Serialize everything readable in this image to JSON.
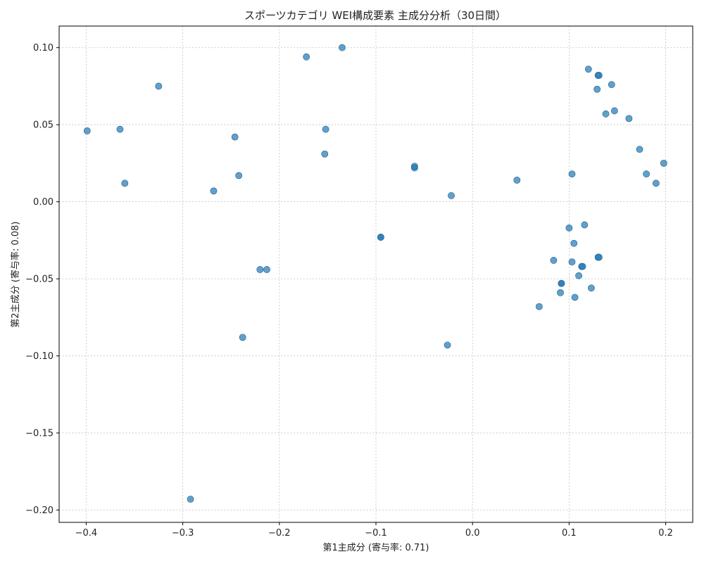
{
  "chart_data": {
    "type": "scatter",
    "title": "スポーツカテゴリ WEI構成要素 主成分分析（30日間）",
    "xlabel": "第1主成分 (寄与率: 0.71)",
    "ylabel": "第2主成分 (寄与率: 0.08)",
    "xlim": [
      -0.428,
      0.228
    ],
    "ylim": [
      -0.208,
      0.114
    ],
    "xticks": [
      {
        "value": -0.4,
        "label": "−0.4"
      },
      {
        "value": -0.3,
        "label": "−0.3"
      },
      {
        "value": -0.2,
        "label": "−0.2"
      },
      {
        "value": -0.1,
        "label": "−0.1"
      },
      {
        "value": 0.0,
        "label": "0.0"
      },
      {
        "value": 0.1,
        "label": "0.1"
      },
      {
        "value": 0.2,
        "label": "0.2"
      }
    ],
    "yticks": [
      {
        "value": 0.1,
        "label": "0.10"
      },
      {
        "value": 0.05,
        "label": "0.05"
      },
      {
        "value": 0.0,
        "label": "0.00"
      },
      {
        "value": -0.05,
        "label": "−0.05"
      },
      {
        "value": -0.1,
        "label": "−0.10"
      },
      {
        "value": -0.15,
        "label": "−0.15"
      },
      {
        "value": -0.2,
        "label": "−0.20"
      }
    ],
    "grid": true,
    "point_color": "#1f77b4",
    "point_opacity": 0.7,
    "points": [
      {
        "x": -0.399,
        "y": 0.046
      },
      {
        "x": -0.365,
        "y": 0.047
      },
      {
        "x": -0.36,
        "y": 0.012
      },
      {
        "x": -0.325,
        "y": 0.075
      },
      {
        "x": -0.292,
        "y": -0.193
      },
      {
        "x": -0.268,
        "y": 0.007
      },
      {
        "x": -0.246,
        "y": 0.042
      },
      {
        "x": -0.242,
        "y": 0.017
      },
      {
        "x": -0.238,
        "y": -0.088
      },
      {
        "x": -0.22,
        "y": -0.044
      },
      {
        "x": -0.213,
        "y": -0.044
      },
      {
        "x": -0.172,
        "y": 0.094
      },
      {
        "x": -0.152,
        "y": 0.047
      },
      {
        "x": -0.153,
        "y": 0.031
      },
      {
        "x": -0.135,
        "y": 0.1
      },
      {
        "x": -0.095,
        "y": -0.023
      },
      {
        "x": -0.095,
        "y": -0.023
      },
      {
        "x": -0.06,
        "y": 0.022
      },
      {
        "x": -0.06,
        "y": 0.023
      },
      {
        "x": -0.022,
        "y": 0.004
      },
      {
        "x": -0.026,
        "y": -0.093
      },
      {
        "x": 0.046,
        "y": 0.014
      },
      {
        "x": 0.069,
        "y": -0.068
      },
      {
        "x": 0.084,
        "y": -0.038
      },
      {
        "x": 0.091,
        "y": -0.059
      },
      {
        "x": 0.092,
        "y": -0.053
      },
      {
        "x": 0.092,
        "y": -0.053
      },
      {
        "x": 0.1,
        "y": -0.017
      },
      {
        "x": 0.103,
        "y": 0.018
      },
      {
        "x": 0.103,
        "y": -0.039
      },
      {
        "x": 0.105,
        "y": -0.027
      },
      {
        "x": 0.106,
        "y": -0.062
      },
      {
        "x": 0.11,
        "y": -0.048
      },
      {
        "x": 0.113,
        "y": -0.042
      },
      {
        "x": 0.114,
        "y": -0.042
      },
      {
        "x": 0.116,
        "y": -0.015
      },
      {
        "x": 0.12,
        "y": 0.086
      },
      {
        "x": 0.123,
        "y": -0.056
      },
      {
        "x": 0.129,
        "y": 0.073
      },
      {
        "x": 0.13,
        "y": 0.082
      },
      {
        "x": 0.131,
        "y": 0.082
      },
      {
        "x": 0.13,
        "y": -0.036
      },
      {
        "x": 0.131,
        "y": -0.036
      },
      {
        "x": 0.138,
        "y": 0.057
      },
      {
        "x": 0.144,
        "y": 0.076
      },
      {
        "x": 0.147,
        "y": 0.059
      },
      {
        "x": 0.162,
        "y": 0.054
      },
      {
        "x": 0.173,
        "y": 0.034
      },
      {
        "x": 0.18,
        "y": 0.018
      },
      {
        "x": 0.19,
        "y": 0.012
      },
      {
        "x": 0.198,
        "y": 0.025
      }
    ]
  }
}
